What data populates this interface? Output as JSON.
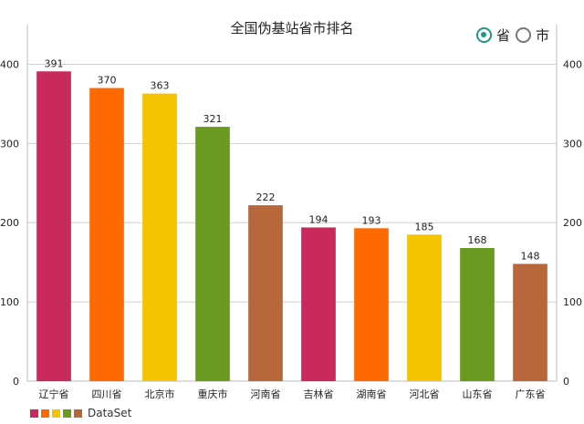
{
  "chart_data": {
    "type": "bar",
    "title": "全国伪基站省市排名",
    "categories": [
      "辽宁省",
      "四川省",
      "北京市",
      "重庆市",
      "河南省",
      "吉林省",
      "湖南省",
      "河北省",
      "山东省",
      "广东省"
    ],
    "values": [
      391,
      370,
      363,
      321,
      222,
      194,
      193,
      185,
      168,
      148
    ],
    "value_labels": [
      "391",
      "370",
      "363",
      "321",
      "222",
      "194",
      "193",
      "185",
      "168",
      "148"
    ],
    "colors": [
      "#c72a5b",
      "#ff6a00",
      "#f5c400",
      "#6a9a22",
      "#b8673a",
      "#c72a5b",
      "#ff6a00",
      "#f5c400",
      "#6a9a22",
      "#b8673a"
    ],
    "ylim": [
      0,
      450
    ],
    "yticks": [
      "0",
      "100",
      "200",
      "300",
      "400"
    ],
    "grid": true,
    "right_axis": true,
    "legend": {
      "placement": "bottom-left",
      "label": "DataSet",
      "swatch_colors": [
        "#c72a5b",
        "#ff6a00",
        "#f5c400",
        "#6a9a22",
        "#b8673a"
      ]
    }
  },
  "toggle": {
    "options": [
      {
        "label": "省",
        "selected": true
      },
      {
        "label": "市",
        "selected": false
      }
    ],
    "accent_color": "#1a9a83"
  }
}
